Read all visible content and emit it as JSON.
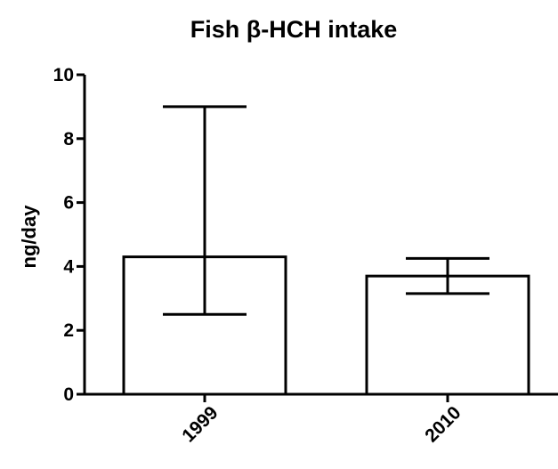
{
  "chart_data": {
    "type": "bar",
    "title": "Fish β-HCH intake",
    "xlabel": "",
    "ylabel": "ng/day",
    "categories": [
      "1999",
      "2010"
    ],
    "values": [
      4.3,
      3.7
    ],
    "error_low": [
      2.5,
      3.15
    ],
    "error_high": [
      9.0,
      4.25
    ],
    "ylim": [
      0,
      10
    ],
    "yticks": [
      "0",
      "2",
      "4",
      "6",
      "8",
      "10"
    ],
    "grid": false,
    "legend": "none",
    "colors": {
      "bar_fill": "#ffffff",
      "bar_stroke": "#000000",
      "axis": "#000000"
    }
  }
}
